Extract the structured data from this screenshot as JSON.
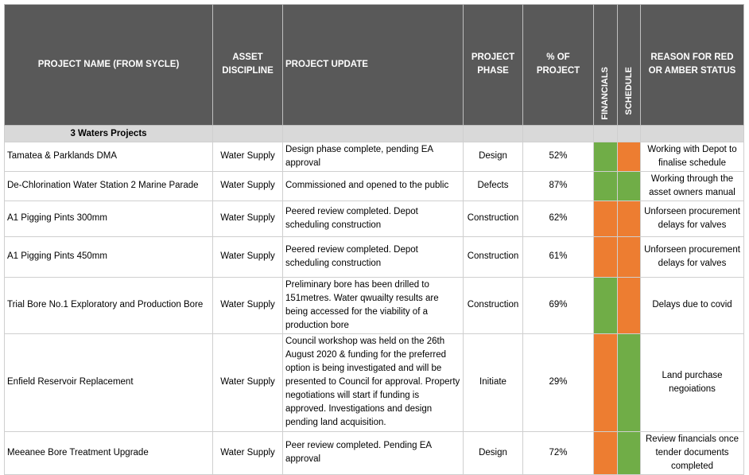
{
  "table": {
    "headers": [
      "PROJECT NAME (FROM SYCLE)",
      "ASSET DISCIPLINE",
      "PROJECT UPDATE",
      "PROJECT PHASE",
      "% OF PROJECT",
      "FINANCIALS",
      "SCHEDULE",
      "REASON FOR RED OR AMBER STATUS"
    ],
    "section": "3 Waters Projects",
    "status_colors": {
      "green": "#70ad47",
      "orange": "#ed7d31"
    },
    "rows": [
      {
        "name": "Tamatea & Parklands DMA",
        "discipline": "Water Supply",
        "update": "Design phase complete, pending EA approval",
        "phase": "Design",
        "percent": "52%",
        "financials": "green",
        "schedule": "orange",
        "reason": "Working with Depot to finalise schedule"
      },
      {
        "name": "De-Chlorination Water Station 2 Marine Parade",
        "discipline": "Water Supply",
        "update": "Commissioned and opened to the public",
        "phase": "Defects",
        "percent": "87%",
        "financials": "green",
        "schedule": "green",
        "reason": "Working through the asset owners manual"
      },
      {
        "name": "A1 Pigging Pints 300mm",
        "discipline": "Water Supply",
        "update": "Peered review completed. Depot scheduling construction",
        "phase": "Construction",
        "percent": "62%",
        "financials": "orange",
        "schedule": "orange",
        "reason": "Unforseen procurement delays for valves"
      },
      {
        "name": "A1 Pigging Pints 450mm",
        "discipline": "Water Supply",
        "update": "Peered review completed. Depot scheduling construction",
        "phase": "Construction",
        "percent": "61%",
        "financials": "orange",
        "schedule": "orange",
        "reason": "Unforseen procurement delays for valves"
      },
      {
        "name": "Trial Bore No.1 Exploratory and Production Bore",
        "discipline": "Water Supply",
        "update": "Preliminary bore has been drilled to 151metres. Water qwuailty results are being accessed for the viability of a production bore",
        "phase": "Construction",
        "percent": "69%",
        "financials": "green",
        "schedule": "orange",
        "reason": "Delays due to covid"
      },
      {
        "name": "Enfield Reservoir Replacement",
        "discipline": "Water Supply",
        "update": "Council workshop was held on the 26th August 2020 & funding for the preferred option is being investigated and will be presented to Council for approval. Property negotiations will start if funding is approved. Investigations and design pending land acquisition.",
        "phase": "Initiate",
        "percent": "29%",
        "financials": "orange",
        "schedule": "green",
        "reason": "Land purchase negoiations"
      },
      {
        "name": "Meeanee Bore Treatment Upgrade",
        "discipline": "Water Supply",
        "update": "Peer review completed. Pending EA approval",
        "phase": "Design",
        "percent": "72%",
        "financials": "orange",
        "schedule": "green",
        "reason": "Review financials once tender documents completed"
      }
    ]
  }
}
